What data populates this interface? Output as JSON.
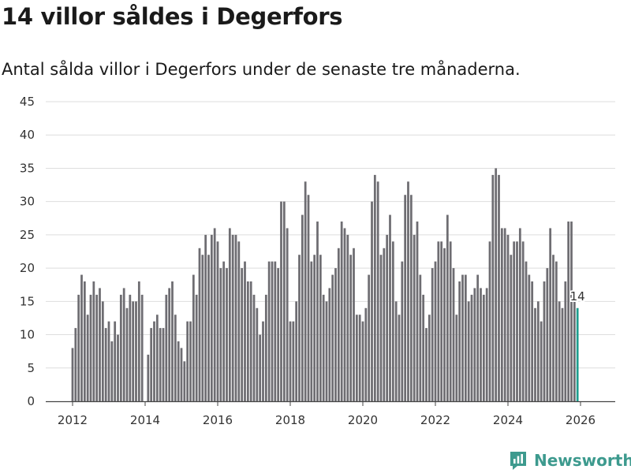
{
  "title": "14 villor såldes i Degerfors",
  "subtitle": "Antal sålda villor i Degerfors under de senaste tre månaderna.",
  "brand": "Newsworthy",
  "colors": {
    "bar": "#6e6d72",
    "highlight": "#1e9f8f",
    "grid": "#dedede",
    "brand": "#3d9a8e"
  },
  "chart_data": {
    "type": "bar",
    "title": "14 villor såldes i Degerfors",
    "xlabel": "",
    "ylabel": "",
    "ylim": [
      0,
      45
    ],
    "yticks": [
      "0",
      "5",
      "10",
      "15",
      "20",
      "25",
      "30",
      "35",
      "40",
      "45"
    ],
    "xticks": [
      {
        "label": "2012",
        "value": 2012
      },
      {
        "label": "2014",
        "value": 2014
      },
      {
        "label": "2016",
        "value": 2016
      },
      {
        "label": "2018",
        "value": 2018
      },
      {
        "label": "2020",
        "value": 2020
      },
      {
        "label": "2022",
        "value": 2022
      },
      {
        "label": "2024",
        "value": 2024
      },
      {
        "label": "2026",
        "value": 2026
      }
    ],
    "x_start": 2012.0,
    "x_step": 0.0833333,
    "values": [
      8,
      11,
      16,
      19,
      18,
      13,
      16,
      18,
      16,
      17,
      15,
      11,
      12,
      9,
      12,
      10,
      16,
      17,
      14,
      16,
      15,
      15,
      18,
      16,
      0,
      7,
      11,
      12,
      13,
      11,
      11,
      16,
      17,
      18,
      13,
      9,
      8,
      6,
      12,
      12,
      19,
      16,
      23,
      22,
      25,
      22,
      25,
      26,
      24,
      20,
      21,
      20,
      26,
      25,
      25,
      24,
      20,
      21,
      18,
      18,
      16,
      14,
      10,
      12,
      16,
      21,
      21,
      21,
      20,
      30,
      30,
      26,
      12,
      12,
      15,
      22,
      28,
      33,
      31,
      21,
      22,
      27,
      22,
      16,
      15,
      17,
      19,
      20,
      23,
      27,
      26,
      25,
      22,
      23,
      13,
      13,
      12,
      14,
      19,
      30,
      34,
      33,
      22,
      23,
      25,
      28,
      24,
      15,
      13,
      21,
      31,
      33,
      31,
      25,
      27,
      19,
      16,
      11,
      13,
      20,
      21,
      24,
      24,
      23,
      28,
      24,
      20,
      13,
      18,
      19,
      19,
      15,
      16,
      17,
      19,
      17,
      16,
      17,
      24,
      34,
      35,
      34,
      26,
      26,
      25,
      22,
      24,
      24,
      26,
      24,
      21,
      19,
      18,
      14,
      15,
      12,
      18,
      20,
      26,
      22,
      21,
      15,
      14,
      18,
      27,
      27,
      16,
      14
    ],
    "highlight_index": 167,
    "annotation": "14"
  }
}
